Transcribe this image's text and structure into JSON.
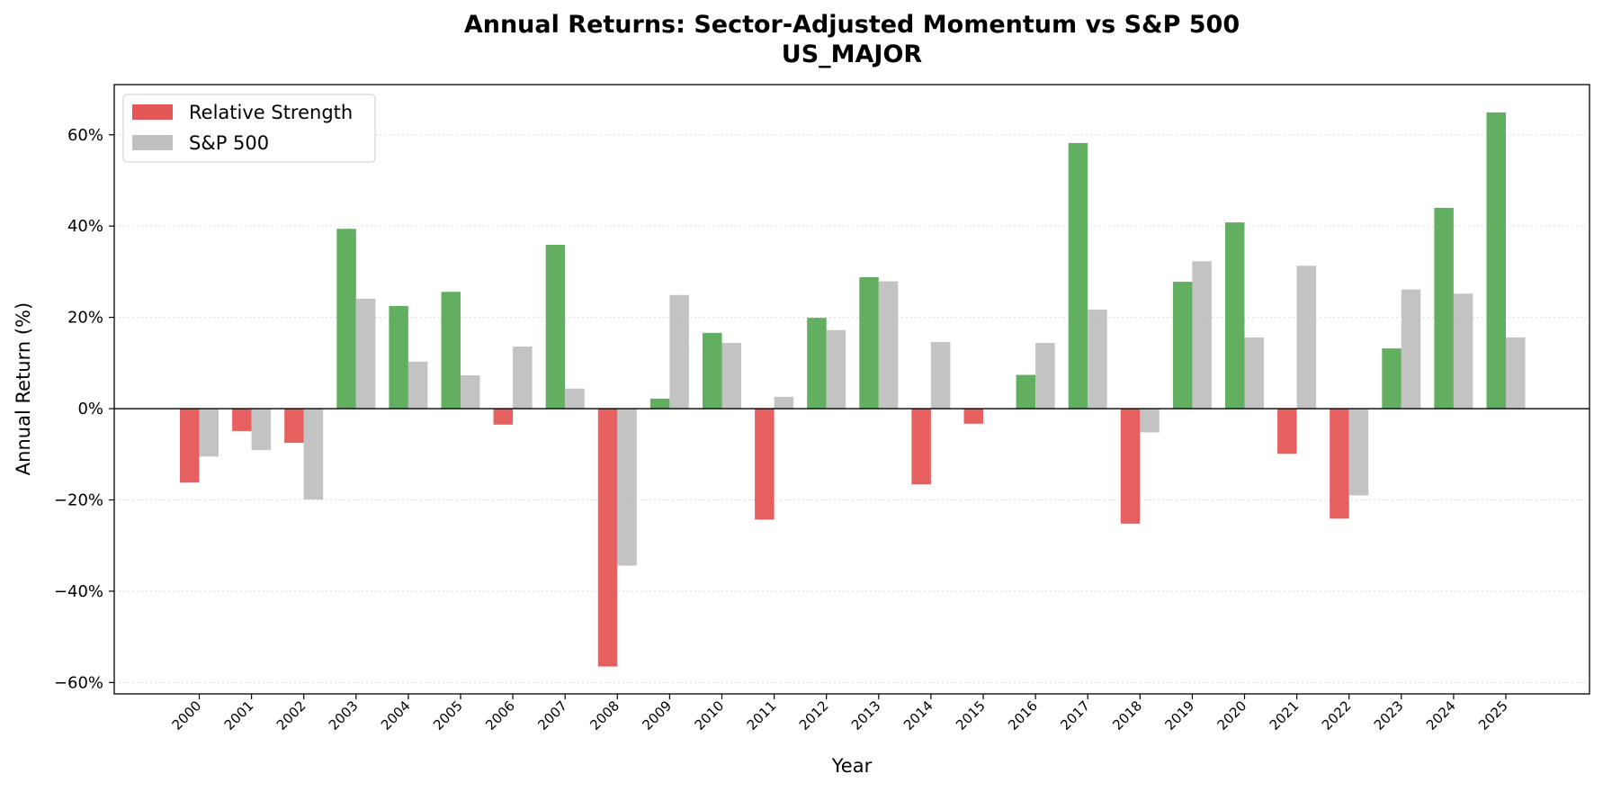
{
  "chart_data": {
    "type": "bar",
    "title": "Annual Returns: Sector-Adjusted Momentum vs S&P 500",
    "subtitle": "US_MAJOR",
    "xlabel": "Year",
    "ylabel": "Annual Return (%)",
    "ylim": [
      -62.5,
      71
    ],
    "yticks": [
      -60,
      -40,
      -20,
      0,
      20,
      40,
      60
    ],
    "ytick_labels": [
      "−60%",
      "−40%",
      "−20%",
      "0%",
      "20%",
      "40%",
      "60%"
    ],
    "grid": "horizontal, dotted",
    "legend_position": "top-left",
    "categories": [
      "2000",
      "2001",
      "2002",
      "2003",
      "2004",
      "2005",
      "2006",
      "2007",
      "2008",
      "2009",
      "2010",
      "2011",
      "2012",
      "2013",
      "2014",
      "2015",
      "2016",
      "2017",
      "2018",
      "2019",
      "2020",
      "2021",
      "2022",
      "2023",
      "2024",
      "2025"
    ],
    "series": [
      {
        "name": "Relative Strength",
        "legend_color": "#e45756",
        "positive_color": "#5aab5a",
        "negative_color": "#e45756",
        "values": [
          -16.2,
          -4.9,
          -7.5,
          39.4,
          22.5,
          25.6,
          -3.5,
          35.9,
          -56.5,
          2.2,
          16.6,
          -24.3,
          19.9,
          28.8,
          -16.6,
          -3.3,
          7.4,
          58.2,
          -25.2,
          27.8,
          40.8,
          -9.9,
          -24.1,
          13.2,
          44.0,
          64.9
        ]
      },
      {
        "name": "S&P 500",
        "legend_color": "#c0c0c0",
        "positive_color": "#c0c0c0",
        "negative_color": "#c0c0c0",
        "values": [
          -10.5,
          -9.1,
          -19.9,
          24.1,
          10.3,
          7.3,
          13.6,
          4.4,
          -34.4,
          24.9,
          14.4,
          2.6,
          17.2,
          27.9,
          14.6,
          0,
          14.4,
          21.7,
          -5.2,
          32.3,
          15.6,
          31.3,
          -19.0,
          26.1,
          25.2,
          15.6
        ]
      }
    ]
  }
}
